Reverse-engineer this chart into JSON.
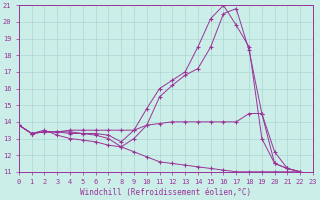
{
  "xlabel": "Windchill (Refroidissement éolien,°C)",
  "xlim": [
    0,
    23
  ],
  "ylim": [
    11,
    21
  ],
  "yticks": [
    11,
    12,
    13,
    14,
    15,
    16,
    17,
    18,
    19,
    20,
    21
  ],
  "xticks": [
    0,
    1,
    2,
    3,
    4,
    5,
    6,
    7,
    8,
    9,
    10,
    11,
    12,
    13,
    14,
    15,
    16,
    17,
    18,
    19,
    20,
    21,
    22,
    23
  ],
  "bg_color": "#cceee8",
  "grid_color": "#aad8d0",
  "line_color": "#993399",
  "series": [
    [
      13.8,
      13.3,
      13.5,
      13.2,
      13.0,
      12.9,
      12.8,
      12.6,
      12.5,
      13.0,
      13.8,
      15.5,
      16.2,
      16.8,
      17.2,
      18.5,
      20.5,
      20.8,
      18.3,
      14.5,
      12.2,
      11.2,
      11.0
    ],
    [
      13.8,
      13.3,
      13.4,
      13.4,
      13.3,
      13.3,
      13.3,
      13.2,
      12.8,
      13.5,
      14.8,
      16.0,
      16.5,
      17.0,
      18.5,
      20.2,
      21.0,
      19.8,
      18.5,
      13.0,
      11.5,
      11.2,
      11.0
    ],
    [
      13.8,
      13.3,
      13.4,
      13.4,
      13.5,
      13.5,
      13.5,
      13.5,
      13.5,
      13.5,
      13.8,
      13.9,
      14.0,
      14.0,
      14.0,
      14.0,
      14.0,
      14.0,
      14.5,
      14.5,
      11.5,
      11.2,
      11.0
    ],
    [
      13.8,
      13.3,
      13.4,
      13.4,
      13.4,
      13.3,
      13.2,
      13.0,
      12.5,
      12.2,
      11.9,
      11.6,
      11.5,
      11.4,
      11.3,
      11.2,
      11.1,
      11.0,
      11.0,
      11.0,
      11.0,
      11.0,
      11.0
    ]
  ]
}
